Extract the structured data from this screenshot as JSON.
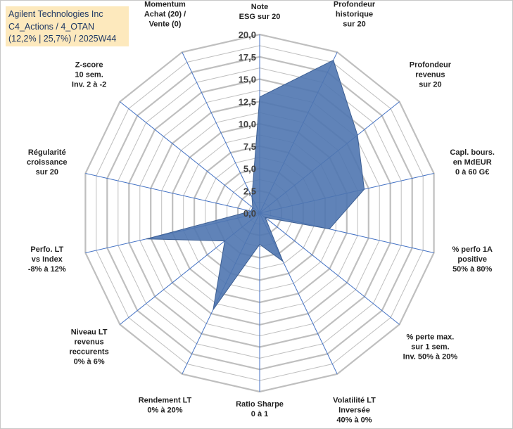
{
  "chart_data": {
    "type": "radar",
    "title_lines": [
      "Agilent Technologies Inc",
      "C4_Actions / 4_OTAN",
      "(12,2% | 25,7%) / 2025W44"
    ],
    "rlim": [
      0,
      20
    ],
    "tick_labels": [
      "0,0",
      "2,5",
      "5,0",
      "7,5",
      "10,0",
      "12,5",
      "15,0",
      "17,5",
      "20,0"
    ],
    "axes": [
      {
        "label": [
          "Note",
          "ESG sur 20"
        ],
        "value": 13
      },
      {
        "label": [
          "Profondeur",
          "historique",
          "sur 20"
        ],
        "value": 19
      },
      {
        "label": [
          "Profondeur",
          "revenus",
          "sur 20"
        ],
        "value": 14
      },
      {
        "label": [
          "Capl. bours.",
          "en MdEUR",
          "0 à 60 G€"
        ],
        "value": 12
      },
      {
        "label": [
          "% perfo 1A",
          "positive",
          "50% à 80%"
        ],
        "value": 8
      },
      {
        "label": [
          "% perte max.",
          "sur 1 sem.",
          "Inv. 50% à 20%"
        ],
        "value": 0.8
      },
      {
        "label": [
          "Volatilité LT",
          "Inversée",
          "40% à 0%"
        ],
        "value": 6
      },
      {
        "label": [
          "Ratio Sharpe",
          "0 à 1"
        ],
        "value": 3.5
      },
      {
        "label": [
          "Rendement LT",
          "0% à 20%"
        ],
        "value": 12
      },
      {
        "label": [
          "Niveau LT",
          "revenus",
          "reccurents",
          "0% à 6%"
        ],
        "value": 5
      },
      {
        "label": [
          "Perfo. LT",
          "vs Index",
          "-8% à 12%"
        ],
        "value": 13
      },
      {
        "label": [
          "Régularité",
          "croissance",
          "sur 20"
        ],
        "value": 1
      },
      {
        "label": [
          "Z-score",
          "10 sem.",
          "Inv. 2 à -2"
        ],
        "value": 1
      },
      {
        "label": [
          "Momentum",
          "Achat (20) /",
          "Vente (0)"
        ],
        "value": 2
      }
    ],
    "colors": {
      "fill": "#4f76b0",
      "stroke": "#3d5f93",
      "grid": "#bfbfbf",
      "spoke": "#4472c4"
    }
  }
}
